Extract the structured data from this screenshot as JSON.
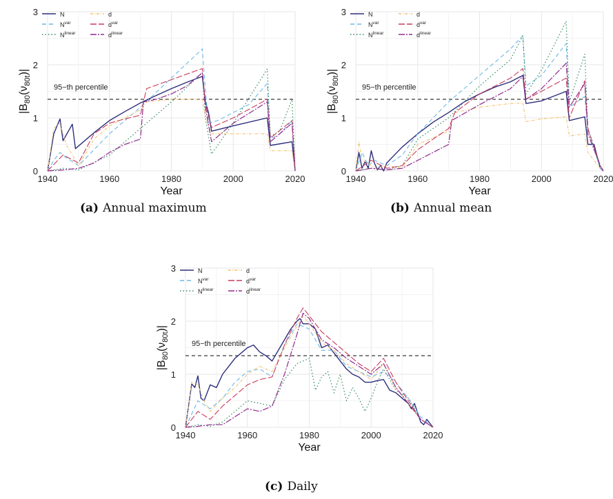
{
  "captions": {
    "a": {
      "label": "(a)",
      "text": "Annual maximum"
    },
    "b": {
      "label": "(b)",
      "text": "Annual mean"
    },
    "c": {
      "label": "(c)",
      "text": "Daily"
    }
  },
  "ylabel_main": "|B",
  "ylabel_sub": "80",
  "ylabel_arg": "(ν",
  "ylabel_arg_sub": "80t",
  "ylabel_close": ")|",
  "xlabel": "Year",
  "threshold_label": "95−th percentile",
  "colors": {
    "N": "#2b2d7a",
    "Nvar": "#6ab7e6",
    "Nlinear": "#2e8a57",
    "d": "#f0c070",
    "dvar": "#c93a5a",
    "dlinear": "#8e2a8e"
  },
  "legend": [
    {
      "key": "N",
      "base": "N",
      "sup": ""
    },
    {
      "key": "Nvar",
      "base": "N",
      "sup": "var"
    },
    {
      "key": "Nlinear",
      "base": "N",
      "sup": "linear"
    },
    {
      "key": "d",
      "base": "d",
      "sup": ""
    },
    {
      "key": "dvar",
      "base": "d",
      "sup": "var"
    },
    {
      "key": "dlinear",
      "base": "d",
      "sup": "linear"
    }
  ],
  "chart_data": [
    {
      "id": "a",
      "type": "line",
      "xlabel": "Year",
      "xlim": [
        1940,
        2020
      ],
      "ylim": [
        0,
        3
      ],
      "xticks": [
        1940,
        1960,
        1980,
        2000,
        2020
      ],
      "yticks": [
        0,
        1,
        2,
        3
      ],
      "threshold": 1.35,
      "grid": true,
      "legend_position": "top-left",
      "series": [
        {
          "key": "N",
          "x": [
            1940,
            1942,
            1944,
            1945,
            1948,
            1949,
            1955,
            1960,
            1965,
            1970,
            1975,
            1980,
            1985,
            1990,
            1991,
            1992,
            1993,
            2000,
            2011,
            2012,
            2019,
            2020
          ],
          "y": [
            0,
            0.7,
            0.98,
            0.57,
            0.88,
            0.42,
            0.72,
            0.95,
            1.12,
            1.28,
            1.42,
            1.55,
            1.67,
            1.78,
            1.3,
            1.1,
            0.75,
            0.85,
            1.0,
            0.48,
            0.55,
            0
          ]
        },
        {
          "key": "Nvar",
          "x": [
            1940,
            1942,
            1944,
            1946,
            1950,
            1955,
            1960,
            1970,
            1980,
            1990,
            1991,
            1992,
            1995,
            2000,
            2005,
            2011,
            2012,
            2015,
            2019,
            2020
          ],
          "y": [
            0,
            0.2,
            0.35,
            0.25,
            0.1,
            0.4,
            0.7,
            1.2,
            1.75,
            2.3,
            1.5,
            0.9,
            0.95,
            1.1,
            1.25,
            1.65,
            0.6,
            0.7,
            0.95,
            0
          ]
        },
        {
          "key": "Nlinear",
          "x": [
            1940,
            1945,
            1950,
            1960,
            1970,
            1980,
            1990,
            1991,
            1993,
            2000,
            2011,
            2012,
            2015,
            2019,
            2020
          ],
          "y": [
            0,
            0.05,
            0.02,
            0.3,
            0.8,
            1.3,
            1.85,
            1.0,
            0.32,
            0.9,
            1.92,
            0.65,
            0.75,
            1.35,
            0
          ]
        },
        {
          "key": "d",
          "x": [
            1940,
            1942,
            1944,
            1946,
            1950,
            1955,
            1960,
            1965,
            1970,
            1972,
            1980,
            1990,
            1991,
            1993,
            2000,
            2011,
            2012,
            2019,
            2020
          ],
          "y": [
            0,
            0.8,
            0.9,
            0.5,
            0.1,
            0.6,
            0.85,
            1.0,
            1.15,
            1.3,
            1.35,
            1.35,
            1.0,
            0.7,
            0.7,
            0.7,
            0.38,
            0.38,
            0
          ]
        },
        {
          "key": "dvar",
          "x": [
            1940,
            1945,
            1950,
            1955,
            1960,
            1965,
            1970,
            1972,
            1980,
            1990,
            1991,
            1993,
            2000,
            2011,
            2012,
            2019,
            2020
          ],
          "y": [
            0,
            0.3,
            0.15,
            0.7,
            0.9,
            0.98,
            1.05,
            1.55,
            1.72,
            1.93,
            1.25,
            0.82,
            1.0,
            1.35,
            0.62,
            0.95,
            0
          ]
        },
        {
          "key": "dlinear",
          "x": [
            1940,
            1945,
            1950,
            1955,
            1960,
            1965,
            1970,
            1971,
            1975,
            1980,
            1985,
            1990,
            1991,
            1993,
            2000,
            2011,
            2012,
            2019,
            2020
          ],
          "y": [
            0,
            0.02,
            0.05,
            0.15,
            0.35,
            0.5,
            0.6,
            1.3,
            1.35,
            1.45,
            1.6,
            1.85,
            1.2,
            0.55,
            0.9,
            1.3,
            0.55,
            0.9,
            0
          ]
        }
      ]
    },
    {
      "id": "b",
      "type": "line",
      "xlabel": "Year",
      "xlim": [
        1940,
        2020
      ],
      "ylim": [
        0,
        3
      ],
      "xticks": [
        1940,
        1960,
        1980,
        2000,
        2020
      ],
      "yticks": [
        0,
        1,
        2,
        3
      ],
      "threshold": 1.35,
      "grid": true,
      "legend_position": "top-left",
      "series": [
        {
          "key": "N",
          "x": [
            1940,
            1941,
            1942,
            1943,
            1944,
            1945,
            1946,
            1947,
            1948,
            1949,
            1950,
            1955,
            1960,
            1965,
            1970,
            1975,
            1980,
            1985,
            1990,
            1994,
            1995,
            2000,
            2008,
            2009,
            2014,
            2015,
            2017,
            2019,
            2020
          ],
          "y": [
            0,
            0.35,
            0.05,
            0.18,
            0.05,
            0.38,
            0.15,
            0.02,
            0.1,
            0,
            0.15,
            0.45,
            0.7,
            0.92,
            1.1,
            1.3,
            1.45,
            1.58,
            1.68,
            1.8,
            1.27,
            1.32,
            1.5,
            0.95,
            1.02,
            0.5,
            0.5,
            0.05,
            0
          ]
        },
        {
          "key": "Nvar",
          "x": [
            1940,
            1942,
            1944,
            1946,
            1950,
            1955,
            1960,
            1970,
            1980,
            1990,
            1994,
            1995,
            2000,
            2008,
            2009,
            2014,
            2015,
            2019,
            2020
          ],
          "y": [
            0,
            0.35,
            0.1,
            0.2,
            0.1,
            0.3,
            0.7,
            1.3,
            1.8,
            2.3,
            2.55,
            1.6,
            1.8,
            2.4,
            1.2,
            1.4,
            0.8,
            0.05,
            0
          ]
        },
        {
          "key": "Nlinear",
          "x": [
            1940,
            1945,
            1950,
            1955,
            1960,
            1970,
            1980,
            1990,
            1994,
            1995,
            2000,
            2008,
            2009,
            2014,
            2015,
            2019,
            2020
          ],
          "y": [
            0,
            0.05,
            0.02,
            0.1,
            0.6,
            1.0,
            1.6,
            2.1,
            2.55,
            1.45,
            1.9,
            2.82,
            1.3,
            2.2,
            0.8,
            0.05,
            0
          ]
        },
        {
          "key": "d",
          "x": [
            1940,
            1941,
            1942,
            1944,
            1946,
            1950,
            1955,
            1960,
            1970,
            1972,
            1980,
            1990,
            1994,
            1995,
            2000,
            2008,
            2009,
            2014,
            2015,
            2019,
            2020
          ],
          "y": [
            0,
            0.55,
            0.2,
            0.15,
            0.05,
            0.1,
            0.05,
            0.5,
            0.75,
            1.1,
            1.2,
            1.27,
            1.28,
            0.93,
            0.98,
            1.02,
            0.66,
            0.7,
            0.35,
            0.05,
            0
          ]
        },
        {
          "key": "dvar",
          "x": [
            1940,
            1945,
            1950,
            1955,
            1960,
            1970,
            1972,
            1980,
            1990,
            1994,
            1995,
            2000,
            2008,
            2009,
            2014,
            2015,
            2019,
            2020
          ],
          "y": [
            0,
            0.2,
            0.05,
            0.1,
            0.4,
            0.8,
            1.1,
            1.45,
            1.75,
            1.93,
            1.35,
            1.5,
            1.75,
            1.0,
            1.7,
            0.8,
            0.1,
            0
          ]
        },
        {
          "key": "dlinear",
          "x": [
            1940,
            1945,
            1950,
            1955,
            1960,
            1965,
            1970,
            1971,
            1980,
            1990,
            1994,
            1995,
            2000,
            2008,
            2009,
            2014,
            2015,
            2019,
            2020
          ],
          "y": [
            0,
            0.05,
            0.02,
            0.05,
            0.2,
            0.35,
            0.5,
            0.95,
            1.25,
            1.55,
            1.78,
            1.35,
            1.55,
            2.03,
            1.2,
            1.65,
            0.7,
            0.1,
            0
          ]
        }
      ]
    },
    {
      "id": "c",
      "type": "line",
      "xlabel": "Year",
      "xlim": [
        1940,
        2020
      ],
      "ylim": [
        0,
        3
      ],
      "xticks": [
        1940,
        1960,
        1980,
        2000,
        2020
      ],
      "yticks": [
        0,
        1,
        2,
        3
      ],
      "threshold": 1.35,
      "grid": true,
      "legend_position": "top-left",
      "series": [
        {
          "key": "N",
          "x": [
            1940,
            1942,
            1943,
            1944,
            1945,
            1946,
            1947,
            1948,
            1950,
            1952,
            1954,
            1956,
            1958,
            1960,
            1962,
            1964,
            1966,
            1968,
            1970,
            1972,
            1974,
            1976,
            1977,
            1978,
            1980,
            1982,
            1984,
            1986,
            1988,
            1990,
            1992,
            1994,
            1996,
            1998,
            2000,
            2002,
            2004,
            2006,
            2008,
            2010,
            2012,
            2013,
            2014,
            2016,
            2017,
            2018,
            2020
          ],
          "y": [
            0,
            0.82,
            0.75,
            0.97,
            0.55,
            0.5,
            0.65,
            0.8,
            0.75,
            1.0,
            1.15,
            1.3,
            1.4,
            1.5,
            1.55,
            1.42,
            1.35,
            1.25,
            1.45,
            1.65,
            1.85,
            2.0,
            2.05,
            1.95,
            1.95,
            1.85,
            1.5,
            1.55,
            1.4,
            1.25,
            1.1,
            1.0,
            0.95,
            0.85,
            0.85,
            0.88,
            0.9,
            0.7,
            0.65,
            0.55,
            0.45,
            0.35,
            0.45,
            0.1,
            0.05,
            0.15,
            0
          ]
        },
        {
          "key": "Nvar",
          "x": [
            1940,
            1944,
            1948,
            1952,
            1956,
            1960,
            1964,
            1968,
            1972,
            1976,
            1980,
            1984,
            1988,
            1992,
            1996,
            2000,
            2004,
            2008,
            2012,
            2016,
            2020
          ],
          "y": [
            0,
            0.5,
            0.35,
            0.55,
            0.85,
            1.05,
            1.1,
            0.95,
            1.55,
            1.95,
            1.85,
            1.45,
            1.45,
            1.15,
            1.05,
            0.95,
            1.05,
            0.85,
            0.55,
            0.2,
            0
          ]
        },
        {
          "key": "Nlinear",
          "x": [
            1940,
            1944,
            1948,
            1952,
            1956,
            1960,
            1964,
            1968,
            1972,
            1976,
            1980,
            1982,
            1984,
            1986,
            1988,
            1990,
            1992,
            1994,
            1996,
            1998,
            2000,
            2002,
            2004,
            2008,
            2012,
            2016,
            2020
          ],
          "y": [
            0,
            0.05,
            0.02,
            0.1,
            0.3,
            0.5,
            0.45,
            0.4,
            0.9,
            1.2,
            1.3,
            0.7,
            0.95,
            1.05,
            0.65,
            1.0,
            0.5,
            0.75,
            0.55,
            0.3,
            0.55,
            0.85,
            1.1,
            0.7,
            0.55,
            0.15,
            0
          ]
        },
        {
          "key": "d",
          "x": [
            1940,
            1942,
            1944,
            1946,
            1948,
            1952,
            1956,
            1960,
            1964,
            1968,
            1972,
            1976,
            1978,
            1980,
            1984,
            1988,
            1992,
            1996,
            2000,
            2004,
            2008,
            2012,
            2016,
            2020
          ],
          "y": [
            0,
            0.85,
            0.8,
            0.5,
            0.3,
            0.55,
            0.75,
            1.0,
            1.15,
            1.05,
            1.5,
            1.9,
            2.1,
            1.95,
            1.6,
            1.45,
            1.2,
            1.05,
            0.9,
            1.2,
            0.75,
            0.45,
            0.15,
            0
          ]
        },
        {
          "key": "dvar",
          "x": [
            1940,
            1944,
            1948,
            1952,
            1956,
            1960,
            1964,
            1968,
            1972,
            1976,
            1978,
            1980,
            1984,
            1988,
            1992,
            1996,
            2000,
            2004,
            2008,
            2012,
            2016,
            2020
          ],
          "y": [
            0,
            0.3,
            0.15,
            0.4,
            0.6,
            0.8,
            0.9,
            0.95,
            1.55,
            2.05,
            2.25,
            2.1,
            1.8,
            1.6,
            1.4,
            1.2,
            1.05,
            1.3,
            0.85,
            0.5,
            0.15,
            0
          ]
        },
        {
          "key": "dlinear",
          "x": [
            1940,
            1944,
            1948,
            1952,
            1956,
            1960,
            1964,
            1968,
            1972,
            1976,
            1978,
            1980,
            1984,
            1988,
            1992,
            1996,
            2000,
            2004,
            2008,
            2012,
            2016,
            2020
          ],
          "y": [
            0,
            0.02,
            0.05,
            0.05,
            0.2,
            0.35,
            0.3,
            0.4,
            1.0,
            1.75,
            2.15,
            2.05,
            1.65,
            1.5,
            1.3,
            1.15,
            1.0,
            1.2,
            0.75,
            0.45,
            0.15,
            0
          ]
        }
      ]
    }
  ]
}
